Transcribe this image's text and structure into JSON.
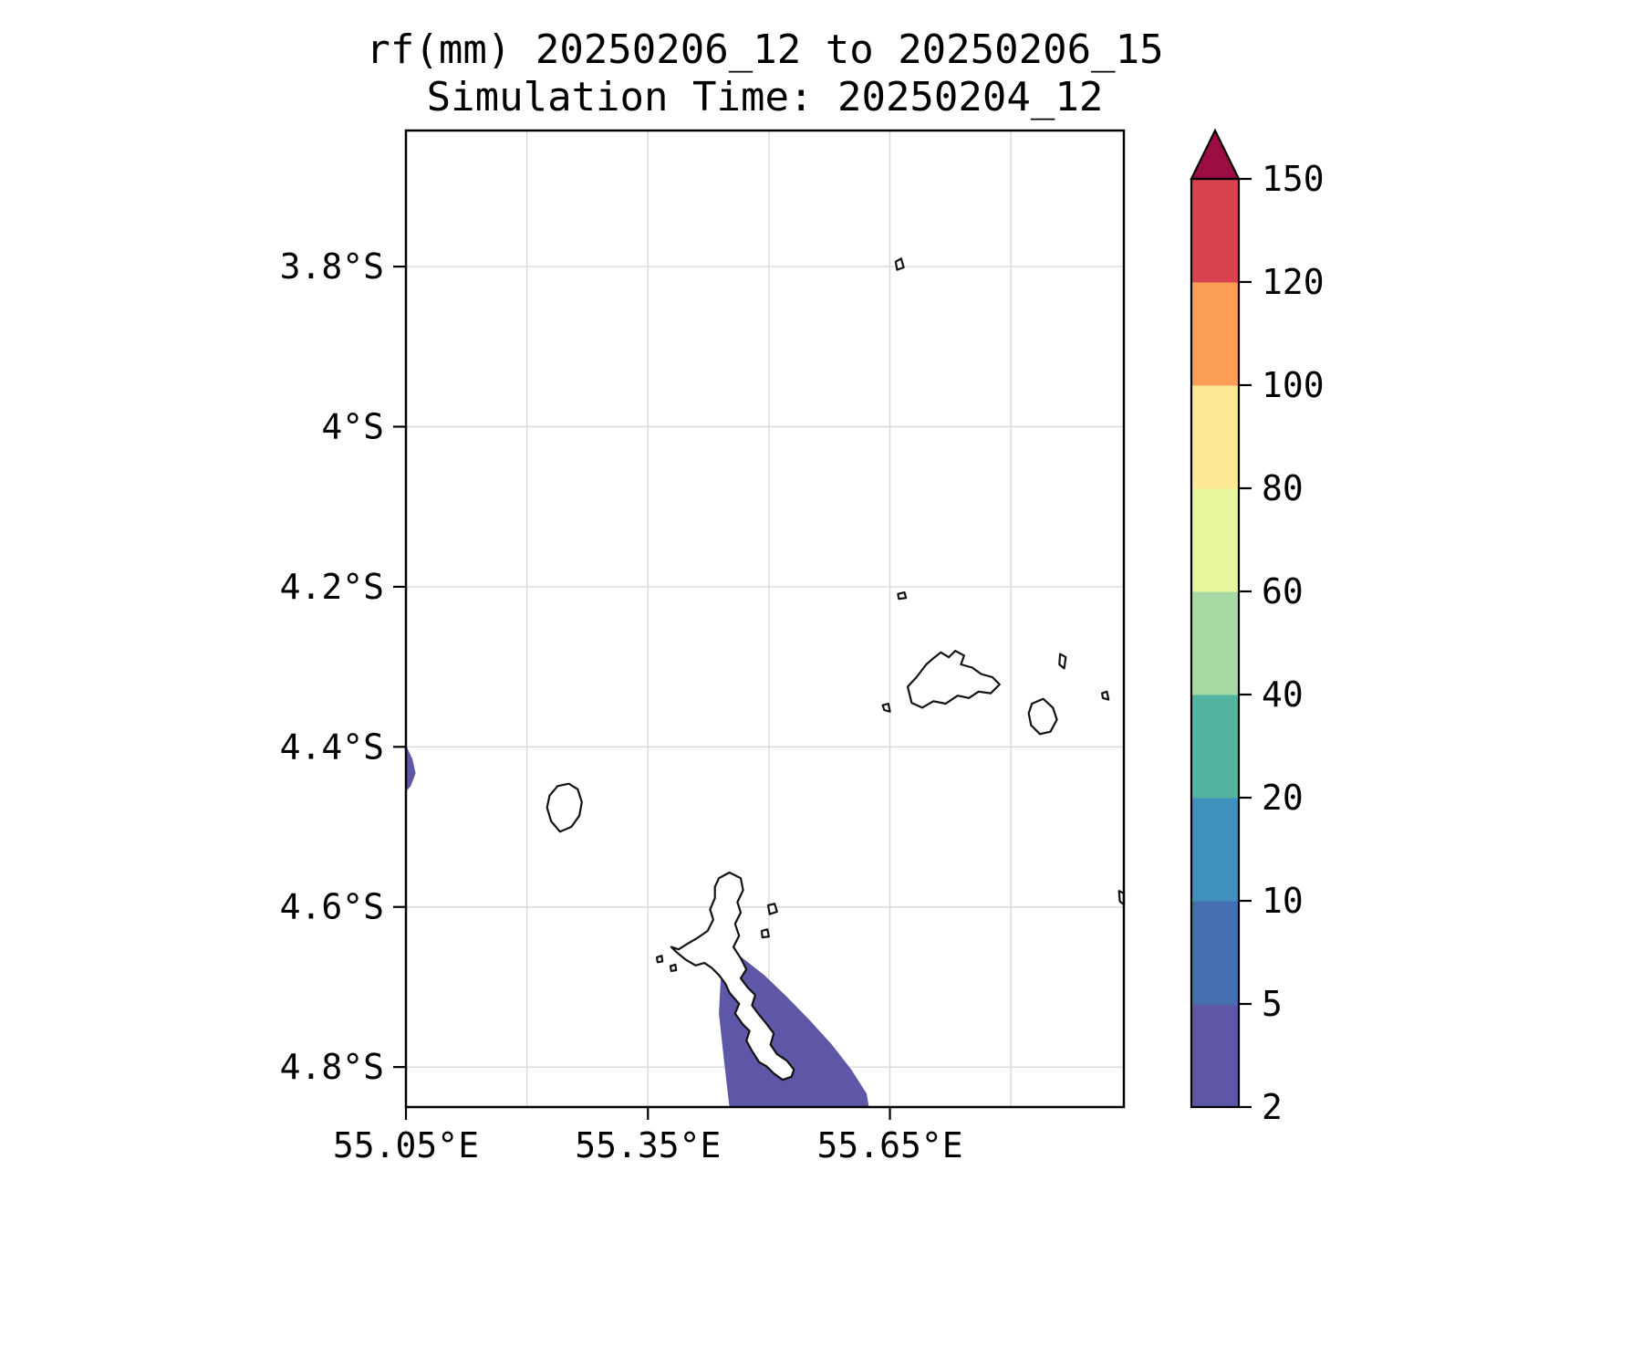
{
  "figure": {
    "title": "rf(mm) 20250206_12 to 20250206_15",
    "subtitle": "Simulation Time: 20250204_12"
  },
  "style": {
    "background": "#ffffff",
    "grid_color": "#d9d9d9",
    "coast_color": "#121212",
    "frame_color": "#000000",
    "text_color": "#000000",
    "land_fill": "#ffffff"
  },
  "chart_data": {
    "type": "heatmap",
    "title": "rf(mm) 20250206_12 to 20250206_15",
    "subtitle": "Simulation Time: 20250204_12",
    "variable": "rf(mm)",
    "valid_from": "20250206_12",
    "valid_to": "20250206_15",
    "simulation_time": "20250204_12",
    "axes": {
      "grid": true,
      "lon_range": [
        55.05,
        55.94
      ],
      "lat_range_south": [
        3.63,
        4.85
      ],
      "x_ticks": [
        {
          "value": 55.05,
          "label": "55.05°E"
        },
        {
          "value": 55.35,
          "label": "55.35°E"
        },
        {
          "value": 55.65,
          "label": "55.65°E"
        }
      ],
      "y_ticks": [
        {
          "value": 3.8,
          "label": "3.8°S"
        },
        {
          "value": 4.0,
          "label": "4°S"
        },
        {
          "value": 4.2,
          "label": "4.2°S"
        },
        {
          "value": 4.4,
          "label": "4.4°S"
        },
        {
          "value": 4.6,
          "label": "4.6°S"
        },
        {
          "value": 4.8,
          "label": "4.8°S"
        }
      ],
      "x_gridlines": [
        55.2,
        55.35,
        55.5,
        55.65,
        55.8
      ],
      "y_gridlines": [
        3.8,
        4.0,
        4.2,
        4.4,
        4.6,
        4.8
      ]
    },
    "colorbar": {
      "levels": [
        2,
        5,
        10,
        20,
        40,
        60,
        80,
        100,
        120,
        150
      ],
      "tick_labels": [
        "2",
        "5",
        "10",
        "20",
        "40",
        "60",
        "80",
        "100",
        "120",
        "150"
      ],
      "colors": [
        "#5e56a6",
        "#4470b2",
        "#4191bf",
        "#53b4a2",
        "#a6d9a4",
        "#e9f69e",
        "#fde995",
        "#fb9c57",
        "#d9434f"
      ],
      "over_color": "#9c0e43",
      "extend": "max",
      "position": "right"
    },
    "contour_regions": [
      {
        "id": "rain-band-south",
        "level_min": 2,
        "level_max": 5,
        "color_index": 0,
        "points": [
          [
            55.444,
            4.666
          ],
          [
            55.465,
            4.662
          ],
          [
            55.494,
            4.685
          ],
          [
            55.522,
            4.712
          ],
          [
            55.551,
            4.742
          ],
          [
            55.578,
            4.772
          ],
          [
            55.602,
            4.803
          ],
          [
            55.621,
            4.833
          ],
          [
            55.624,
            4.85
          ],
          [
            55.451,
            4.85
          ],
          [
            55.444,
            4.789
          ],
          [
            55.438,
            4.733
          ],
          [
            55.44,
            4.693
          ]
        ]
      },
      {
        "id": "rain-patch-west-edge",
        "level_min": 2,
        "level_max": 5,
        "color_index": 0,
        "points": [
          [
            55.05,
            4.398
          ],
          [
            55.058,
            4.415
          ],
          [
            55.062,
            4.433
          ],
          [
            55.056,
            4.449
          ],
          [
            55.05,
            4.456
          ]
        ]
      }
    ],
    "coastlines": [
      {
        "id": "islet-north",
        "points": [
          [
            55.657,
            3.794
          ],
          [
            55.664,
            3.79
          ],
          [
            55.667,
            3.801
          ],
          [
            55.659,
            3.804
          ]
        ]
      },
      {
        "id": "islet-ne-small",
        "points": [
          [
            55.66,
            4.209
          ],
          [
            55.668,
            4.207
          ],
          [
            55.67,
            4.214
          ],
          [
            55.661,
            4.215
          ]
        ]
      },
      {
        "id": "island-ne-large",
        "points": [
          [
            55.677,
            4.345
          ],
          [
            55.672,
            4.325
          ],
          [
            55.683,
            4.313
          ],
          [
            55.695,
            4.297
          ],
          [
            55.703,
            4.29
          ],
          [
            55.713,
            4.282
          ],
          [
            55.723,
            4.288
          ],
          [
            55.731,
            4.28
          ],
          [
            55.742,
            4.286
          ],
          [
            55.738,
            4.297
          ],
          [
            55.752,
            4.301
          ],
          [
            55.763,
            4.309
          ],
          [
            55.777,
            4.313
          ],
          [
            55.786,
            4.322
          ],
          [
            55.775,
            4.333
          ],
          [
            55.76,
            4.331
          ],
          [
            55.748,
            4.339
          ],
          [
            55.734,
            4.336
          ],
          [
            55.719,
            4.346
          ],
          [
            55.704,
            4.343
          ],
          [
            55.69,
            4.351
          ]
        ]
      },
      {
        "id": "islet-ne-1",
        "points": [
          [
            55.861,
            4.284
          ],
          [
            55.868,
            4.288
          ],
          [
            55.866,
            4.302
          ],
          [
            55.86,
            4.297
          ]
        ]
      },
      {
        "id": "island-ne-east",
        "points": [
          [
            55.826,
            4.346
          ],
          [
            55.84,
            4.34
          ],
          [
            55.852,
            4.351
          ],
          [
            55.857,
            4.366
          ],
          [
            55.849,
            4.381
          ],
          [
            55.836,
            4.384
          ],
          [
            55.825,
            4.373
          ],
          [
            55.822,
            4.358
          ]
        ]
      },
      {
        "id": "islet-ne-2",
        "points": [
          [
            55.913,
            4.333
          ],
          [
            55.919,
            4.331
          ],
          [
            55.921,
            4.341
          ],
          [
            55.914,
            4.339
          ]
        ]
      },
      {
        "id": "islet-ne-3",
        "points": [
          [
            55.641,
            4.348
          ],
          [
            55.648,
            4.346
          ],
          [
            55.65,
            4.356
          ],
          [
            55.643,
            4.354
          ]
        ]
      },
      {
        "id": "island-west-round",
        "points": [
          [
            55.228,
            4.461
          ],
          [
            55.238,
            4.449
          ],
          [
            55.252,
            4.446
          ],
          [
            55.263,
            4.453
          ],
          [
            55.268,
            4.469
          ],
          [
            55.265,
            4.486
          ],
          [
            55.255,
            4.5
          ],
          [
            55.241,
            4.506
          ],
          [
            55.23,
            4.493
          ],
          [
            55.225,
            4.476
          ]
        ]
      },
      {
        "id": "islet-east-edge",
        "points": [
          [
            55.934,
            4.58
          ],
          [
            55.94,
            4.583
          ],
          [
            55.94,
            4.597
          ],
          [
            55.935,
            4.593
          ]
        ]
      },
      {
        "id": "island-south-large",
        "points": [
          [
            55.438,
            4.564
          ],
          [
            55.451,
            4.557
          ],
          [
            55.465,
            4.564
          ],
          [
            55.468,
            4.579
          ],
          [
            55.461,
            4.594
          ],
          [
            55.465,
            4.607
          ],
          [
            55.458,
            4.621
          ],
          [
            55.463,
            4.636
          ],
          [
            55.456,
            4.65
          ],
          [
            55.465,
            4.664
          ],
          [
            55.472,
            4.678
          ],
          [
            55.465,
            4.689
          ],
          [
            55.474,
            4.701
          ],
          [
            55.483,
            4.71
          ],
          [
            55.479,
            4.723
          ],
          [
            55.488,
            4.735
          ],
          [
            55.497,
            4.746
          ],
          [
            55.506,
            4.758
          ],
          [
            55.502,
            4.772
          ],
          [
            55.51,
            4.784
          ],
          [
            55.522,
            4.792
          ],
          [
            55.531,
            4.803
          ],
          [
            55.528,
            4.812
          ],
          [
            55.517,
            4.816
          ],
          [
            55.506,
            4.808
          ],
          [
            55.497,
            4.799
          ],
          [
            55.488,
            4.794
          ],
          [
            55.479,
            4.78
          ],
          [
            55.472,
            4.767
          ],
          [
            55.476,
            4.755
          ],
          [
            55.467,
            4.746
          ],
          [
            55.458,
            4.733
          ],
          [
            55.463,
            4.721
          ],
          [
            55.451,
            4.707
          ],
          [
            55.446,
            4.696
          ],
          [
            55.438,
            4.685
          ],
          [
            55.429,
            4.676
          ],
          [
            55.42,
            4.67
          ],
          [
            55.409,
            4.673
          ],
          [
            55.397,
            4.666
          ],
          [
            55.386,
            4.657
          ],
          [
            55.379,
            4.65
          ],
          [
            55.388,
            4.653
          ],
          [
            55.399,
            4.646
          ],
          [
            55.411,
            4.639
          ],
          [
            55.424,
            4.63
          ],
          [
            55.431,
            4.616
          ],
          [
            55.427,
            4.603
          ],
          [
            55.433,
            4.589
          ],
          [
            55.433,
            4.575
          ]
        ]
      },
      {
        "id": "islet-se-1",
        "points": [
          [
            55.499,
            4.598
          ],
          [
            55.507,
            4.596
          ],
          [
            55.51,
            4.606
          ],
          [
            55.501,
            4.609
          ]
        ]
      },
      {
        "id": "islet-se-2",
        "points": [
          [
            55.491,
            4.63
          ],
          [
            55.498,
            4.628
          ],
          [
            55.5,
            4.637
          ],
          [
            55.492,
            4.638
          ]
        ]
      },
      {
        "id": "islet-sw-1",
        "points": [
          [
            55.361,
            4.663
          ],
          [
            55.367,
            4.661
          ],
          [
            55.368,
            4.668
          ],
          [
            55.362,
            4.669
          ]
        ]
      },
      {
        "id": "islet-sw-2",
        "points": [
          [
            55.378,
            4.674
          ],
          [
            55.384,
            4.672
          ],
          [
            55.385,
            4.679
          ],
          [
            55.379,
            4.68
          ]
        ]
      }
    ]
  }
}
